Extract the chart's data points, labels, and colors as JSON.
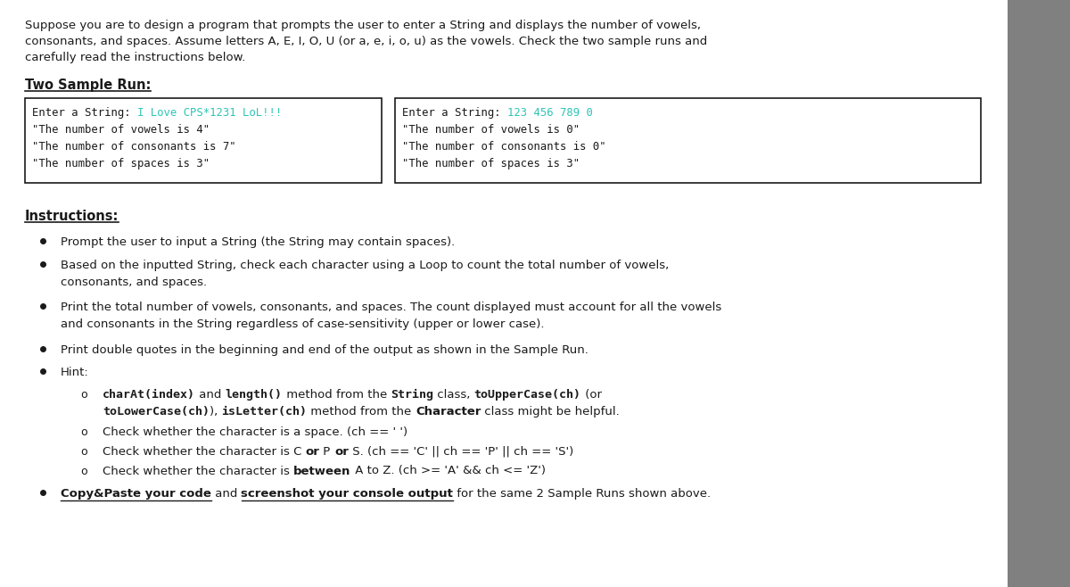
{
  "bg_color": "#ffffff",
  "right_panel_color": "#808080",
  "title_text_lines": [
    "Suppose you are to design a program that prompts the user to enter a String and displays the number of vowels,",
    "consonants, and spaces. Assume letters A, E, I, O, U (or a, e, i, o, u) as the vowels. Check the two sample runs and",
    "carefully read the instructions below."
  ],
  "sample_run_label": "Two Sample Run:",
  "box1_prefix": "Enter a String: ",
  "box1_suffix": "I Love CPS*1231 LoL!!!",
  "box1_output": [
    "\"The number of vowels is 4\"",
    "\"The number of consonants is 7\"",
    "\"The number of spaces is 3\""
  ],
  "box2_prefix": "Enter a String: ",
  "box2_suffix": "123 456 789 0",
  "box2_output": [
    "\"The number of vowels is 0\"",
    "\"The number of consonants is 0\"",
    "\"The number of spaces is 3\""
  ],
  "suffix_color": "#2ec4b6",
  "mono_text_color": "#1a1a1a",
  "instructions_label": "Instructions:",
  "bullet1": "Prompt the user to input a String (the String may contain spaces).",
  "bullet2a": "Based on the inputted String, check each character using a Loop to count the total number of vowels,",
  "bullet2b": "consonants, and spaces.",
  "bullet3a": "Print the total number of vowels, consonants, and spaces. The count displayed must account for all the vowels",
  "bullet3b": "and consonants in the String regardless of case-sensitivity (upper or lower case).",
  "bullet4": "Print double quotes in the beginning and end of the output as shown in the Sample Run.",
  "bullet5": "Hint:",
  "sub1_line1": [
    {
      "t": "charAt(index)",
      "bold": true,
      "mono": true
    },
    {
      "t": " and ",
      "bold": false,
      "mono": false
    },
    {
      "t": "length()",
      "bold": true,
      "mono": true
    },
    {
      "t": " method from the ",
      "bold": false,
      "mono": false
    },
    {
      "t": "String",
      "bold": true,
      "mono": true
    },
    {
      "t": " class, ",
      "bold": false,
      "mono": false
    },
    {
      "t": "toUpperCase(ch)",
      "bold": true,
      "mono": true
    },
    {
      "t": " (or",
      "bold": false,
      "mono": false
    }
  ],
  "sub1_line2": [
    {
      "t": "toLowerCase(ch)",
      "bold": true,
      "mono": true
    },
    {
      "t": "), ",
      "bold": false,
      "mono": false
    },
    {
      "t": "isLetter(ch)",
      "bold": true,
      "mono": true
    },
    {
      "t": " method from the ",
      "bold": false,
      "mono": false
    },
    {
      "t": "Character",
      "bold": true,
      "mono": false
    },
    {
      "t": " class might be helpful.",
      "bold": false,
      "mono": false
    }
  ],
  "sub2": "Check whether the character is a space. (ch == ' ')",
  "sub3_parts": [
    {
      "t": "Check whether the character is C ",
      "bold": false
    },
    {
      "t": "or",
      "bold": true
    },
    {
      "t": " P ",
      "bold": false
    },
    {
      "t": "or",
      "bold": true
    },
    {
      "t": " S. (ch == 'C' || ch == 'P' || ch == 'S')",
      "bold": false
    }
  ],
  "sub4_parts": [
    {
      "t": "Check whether the character is ",
      "bold": false
    },
    {
      "t": "between",
      "bold": true
    },
    {
      "t": " A to Z. (ch >= 'A' && ch <= 'Z')",
      "bold": false
    }
  ],
  "last_bullet_parts": [
    {
      "t": "Copy&Paste your code",
      "underline": true,
      "bold": true
    },
    {
      "t": " and ",
      "underline": false,
      "bold": false
    },
    {
      "t": "screenshot your console output",
      "underline": true,
      "bold": true
    },
    {
      "t": " for the same 2 Sample Runs shown above.",
      "underline": false,
      "bold": false
    }
  ],
  "text_color": "#1a1a1a",
  "box_border_color": "#1a1a1a"
}
